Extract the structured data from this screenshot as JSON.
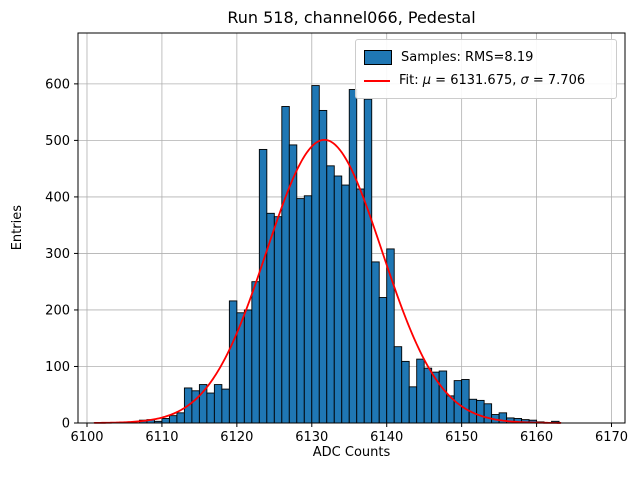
{
  "figure": {
    "title": "Run 518, channel066, Pedestal",
    "xlabel": "ADC Counts",
    "ylabel": "Entries"
  },
  "legend": {
    "samples_label": "Samples: RMS=8.19",
    "fit_parts": {
      "prefix": "Fit: ",
      "mu_symbol": "μ",
      "mu_value": " = 6131.675, ",
      "sigma_symbol": "σ",
      "sigma_value": " = 7.706"
    }
  },
  "colors": {
    "bar_fill": "#1f77b4",
    "bar_edge": "#000000",
    "fit_line": "#ff0000",
    "grid": "#b0b0b0",
    "axes": "#000000",
    "legend_border": "#cccccc",
    "background": "#ffffff"
  },
  "chart_data": {
    "type": "bar",
    "title": "Run 518, channel066, Pedestal",
    "xlabel": "ADC Counts",
    "ylabel": "Entries",
    "grid": true,
    "legend_position": "upper right",
    "rms": 8.19,
    "xlim": [
      6098.8,
      6171.8
    ],
    "ylim": [
      0,
      690
    ],
    "x_ticks": [
      6100,
      6110,
      6120,
      6130,
      6140,
      6150,
      6160,
      6170
    ],
    "y_ticks": [
      0,
      100,
      200,
      300,
      400,
      500,
      600
    ],
    "bin_start": 6107,
    "bin_width": 1,
    "bins": [
      5,
      6,
      3,
      8,
      13,
      18,
      62,
      57,
      68,
      53,
      68,
      60,
      216,
      195,
      200,
      250,
      484,
      371,
      365,
      560,
      492,
      397,
      402,
      597,
      553,
      455,
      437,
      421,
      590,
      414,
      573,
      285,
      222,
      308,
      135,
      109,
      64,
      113,
      97,
      90,
      92,
      48,
      75,
      77,
      42,
      40,
      34,
      15,
      18,
      9,
      8,
      6,
      5,
      2,
      1,
      3
    ],
    "fit": {
      "mu": 6131.675,
      "sigma": 7.706,
      "amplitude": 501,
      "x_start": 6101,
      "x_end": 6163.3
    }
  }
}
